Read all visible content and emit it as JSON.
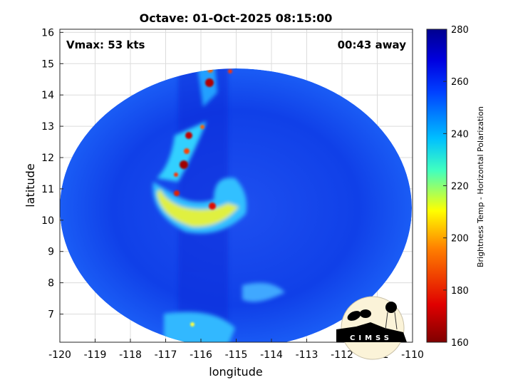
{
  "title": "Octave: 01-Oct-2025 08:15:00",
  "vmax_label": "Vmax: 53 kts",
  "time_away_label": "00:43 away",
  "logo_text": "CIMSS",
  "chart_data": {
    "type": "heatmap",
    "title": "Octave: 01-Oct-2025 08:15:00",
    "xlabel": "longitude",
    "ylabel": "latitude",
    "xlim": [
      -120,
      -110
    ],
    "ylim": [
      6.1,
      16.1
    ],
    "xticks": [
      "-120",
      "-119",
      "-118",
      "-117",
      "-116",
      "-115",
      "-114",
      "-113",
      "-112",
      "-111",
      "-110"
    ],
    "yticks": [
      "7",
      "8",
      "9",
      "10",
      "11",
      "12",
      "13",
      "14",
      "15",
      "16"
    ],
    "grid": true,
    "colorbar": {
      "label": "Brightness Temp - Horizontal Polarization",
      "range": [
        160,
        280
      ],
      "ticks": [
        "160",
        "180",
        "200",
        "220",
        "240",
        "260",
        "280"
      ],
      "colors": [
        "#800000",
        "#ff0000",
        "#ffff00",
        "#00ffff",
        "#0000ff",
        "#00008f"
      ]
    },
    "storm_center": {
      "lon": -115.0,
      "lat": 10.8
    }
  }
}
